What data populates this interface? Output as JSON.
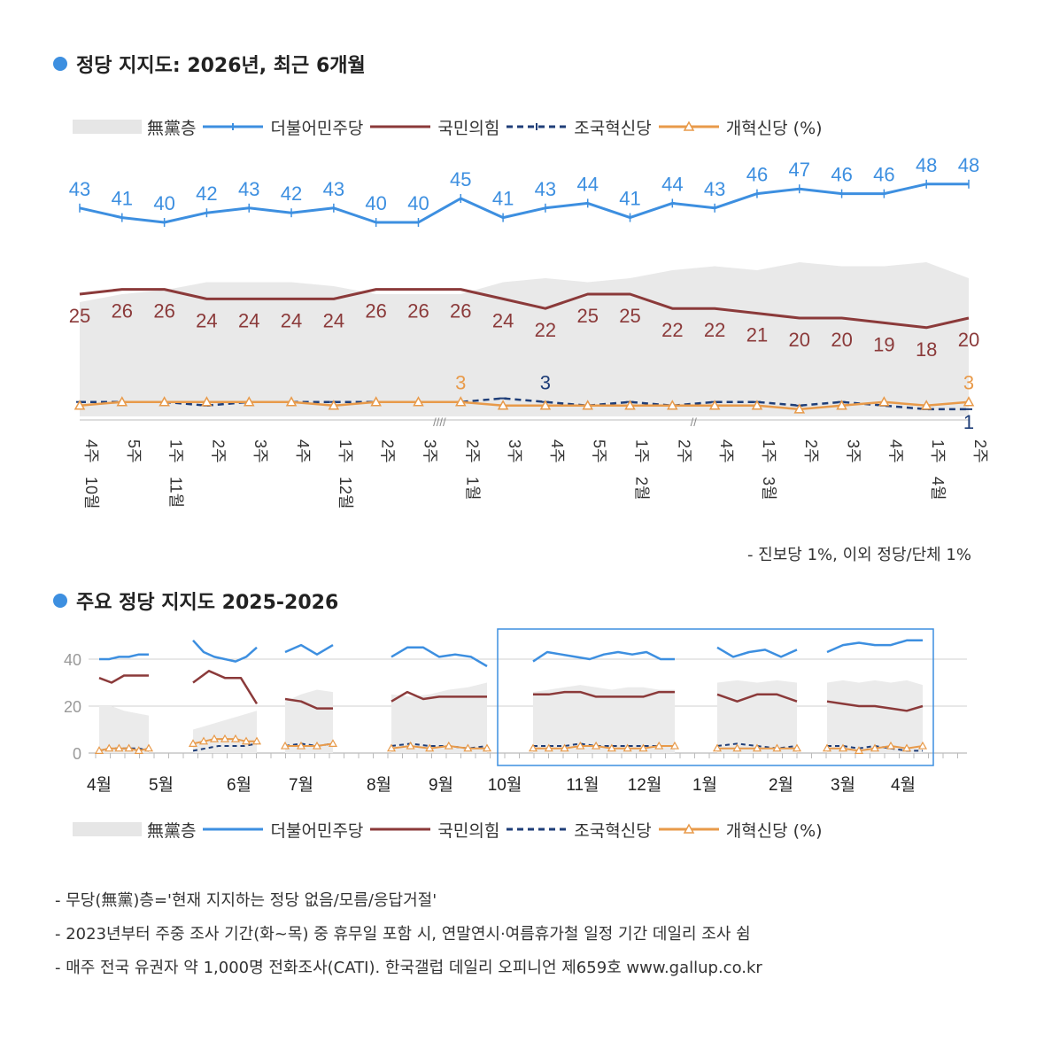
{
  "chart_data": [
    {
      "type": "line",
      "title": "정당 지지도: 2026년, 최근 6개월",
      "legend_text": [
        "無黨층",
        "더불어민주당",
        "국민의힘",
        "조국혁신당",
        "개혁신당 (%)"
      ],
      "x": [
        "10월 4주",
        "5주",
        "11월 1주",
        "2주",
        "3주",
        "4주",
        "12월 1주",
        "2주",
        "3주",
        "1월 2주",
        "3주",
        "4주",
        "5주",
        "2월 1주",
        "2주",
        "4주",
        "3월 1주",
        "2주",
        "3주",
        "4주",
        "4월 1주",
        "2주"
      ],
      "x_week": [
        "4주",
        "5주",
        "1주",
        "2주",
        "3주",
        "4주",
        "1주",
        "2주",
        "3주",
        "2주",
        "3주",
        "4주",
        "5주",
        "1주",
        "2주",
        "4주",
        "1주",
        "2주",
        "3주",
        "4주",
        "1주",
        "2주"
      ],
      "x_month": [
        "10월",
        "",
        "11월",
        "",
        "",
        "",
        "12월",
        "",
        "",
        "1월",
        "",
        "",
        "",
        "2월",
        "",
        "",
        "3월",
        "",
        "",
        "",
        "4월",
        ""
      ],
      "series": [
        {
          "name": "無黨층",
          "color": "#e6e6e6",
          "values": [
            25,
            27,
            28,
            30,
            30,
            30,
            29,
            27,
            27,
            27,
            30,
            31,
            30,
            31,
            33,
            34,
            33,
            35,
            34,
            34,
            35,
            31
          ]
        },
        {
          "name": "더불어민주당",
          "color": "#3d8fe0",
          "values": [
            43,
            41,
            40,
            42,
            43,
            42,
            43,
            40,
            40,
            45,
            41,
            43,
            44,
            41,
            44,
            43,
            46,
            47,
            46,
            46,
            48,
            48
          ]
        },
        {
          "name": "국민의힘",
          "color": "#8b3a3a",
          "values": [
            25,
            26,
            26,
            24,
            24,
            24,
            24,
            26,
            26,
            26,
            24,
            22,
            25,
            25,
            22,
            22,
            21,
            20,
            20,
            19,
            18,
            20
          ]
        },
        {
          "name": "조국혁신당",
          "color": "#1f3e78",
          "values": [
            3,
            3,
            3,
            2,
            3,
            3,
            3,
            3,
            3,
            3,
            4,
            3,
            2,
            3,
            2,
            3,
            3,
            2,
            3,
            2,
            1,
            1
          ]
        },
        {
          "name": "개혁신당",
          "color": "#e89a4a",
          "values": [
            2,
            3,
            3,
            3,
            3,
            3,
            2,
            3,
            3,
            3,
            2,
            2,
            2,
            2,
            2,
            2,
            2,
            1,
            2,
            3,
            2,
            3
          ]
        }
      ],
      "labels": {
        "더불어민주당": [
          "43",
          "41",
          "40",
          "42",
          "43",
          "42",
          "43",
          "40",
          "40",
          "45",
          "41",
          "43",
          "44",
          "41",
          "44",
          "43",
          "46",
          "47",
          "46",
          "46",
          "48",
          "48"
        ],
        "국민의힘": [
          "25",
          "26",
          "26",
          "24",
          "24",
          "24",
          "24",
          "26",
          "26",
          "26",
          "24",
          "22",
          "25",
          "25",
          "22",
          "22",
          "21",
          "20",
          "20",
          "19",
          "18",
          "20"
        ],
        "조국혁신당": {
          "11": "3",
          "21": "1"
        },
        "개혁신당": {
          "9": "3",
          "21": "3"
        }
      },
      "breaks": [
        "////",
        "//"
      ],
      "note": "- 진보당 1%, 이외 정당/단체 1%"
    },
    {
      "type": "line",
      "title": "주요 정당 지지도 2025-2026",
      "legend_text": [
        "無黨층",
        "더불어민주당",
        "국민의힘",
        "조국혁신당",
        "개혁신당 (%)"
      ],
      "yticks": [
        "40",
        "20",
        "0"
      ],
      "ylim": [
        0,
        50
      ],
      "xticks": [
        "4월",
        "5월",
        "6월",
        "7월",
        "8월",
        "9월",
        "10월",
        "11월",
        "12월",
        "1월",
        "2월",
        "3월",
        "4월"
      ],
      "segments": [
        {
          "dem": [
            40,
            40,
            41,
            41,
            42,
            42
          ],
          "ppp": [
            32,
            30,
            33,
            33,
            33
          ],
          "cho": [
            1,
            2,
            2,
            2,
            2,
            1
          ],
          "ref": [
            1,
            2,
            2,
            2,
            1,
            2
          ],
          "none": [
            20,
            20,
            18,
            17,
            16
          ]
        },
        {
          "dem": [
            48,
            43,
            41,
            40,
            39,
            41,
            45
          ],
          "ppp": [
            30,
            35,
            32,
            32,
            21
          ],
          "cho": [
            1,
            2,
            3,
            3,
            3,
            4
          ],
          "ref": [
            4,
            5,
            6,
            6,
            6,
            5,
            5
          ],
          "none": [
            10,
            12,
            14,
            16,
            18
          ]
        },
        {
          "dem": [
            43,
            46,
            42,
            46
          ],
          "ppp": [
            23,
            22,
            19,
            19
          ],
          "cho": [
            3,
            4,
            3,
            4
          ],
          "ref": [
            3,
            3,
            3,
            4
          ],
          "none": [
            22,
            25,
            27,
            26
          ]
        },
        {
          "dem": [
            41,
            45,
            45,
            41,
            42,
            41,
            37
          ],
          "ppp": [
            22,
            26,
            23,
            24,
            24,
            24,
            24
          ],
          "cho": [
            3,
            4,
            3,
            3,
            2,
            3
          ],
          "ref": [
            2,
            3,
            2,
            3,
            2,
            2
          ],
          "none": [
            25,
            24,
            25,
            27,
            28,
            30
          ]
        },
        {
          "dem": [
            39,
            43,
            42,
            41,
            40,
            42,
            43,
            42,
            43,
            40,
            40
          ],
          "ppp": [
            25,
            25,
            26,
            26,
            24,
            24,
            24,
            24,
            26,
            26
          ],
          "cho": [
            3,
            3,
            3,
            4,
            3,
            3,
            3,
            3,
            3,
            3
          ],
          "ref": [
            2,
            2,
            2,
            3,
            3,
            2,
            2,
            2,
            3,
            3
          ],
          "none": [
            26,
            27,
            28,
            29,
            28,
            27,
            28,
            28,
            27,
            27
          ]
        },
        {
          "dem": [
            45,
            41,
            43,
            44,
            41,
            44
          ],
          "ppp": [
            25,
            22,
            25,
            25,
            22
          ],
          "cho": [
            3,
            4,
            3,
            2,
            3
          ],
          "ref": [
            2,
            2,
            2,
            2,
            2
          ],
          "none": [
            30,
            31,
            30,
            31,
            30
          ]
        },
        {
          "dem": [
            43,
            46,
            47,
            46,
            46,
            48,
            48
          ],
          "ppp": [
            22,
            21,
            20,
            20,
            19,
            18,
            20
          ],
          "cho": [
            3,
            3,
            2,
            3,
            2,
            1,
            1
          ],
          "ref": [
            2,
            2,
            1,
            2,
            3,
            2,
            3
          ],
          "none": [
            30,
            31,
            30,
            31,
            30,
            31,
            29
          ]
        }
      ],
      "highlight_range": [
        "10월",
        "4월"
      ]
    }
  ],
  "footnotes": [
    "- 무당(無黨)층='현재 지지하는 정당 없음/모름/응답거절'",
    "- 2023년부터 주중 조사 기간(화~목) 중 휴무일 포함 시, 연말연시·여름휴가철 일정 기간 데일리 조사 쉼",
    "- 매주 전국 유권자 약 1,000명 전화조사(CATI). 한국갤럽 데일리 오피니언 제659호 www.gallup.co.kr"
  ]
}
